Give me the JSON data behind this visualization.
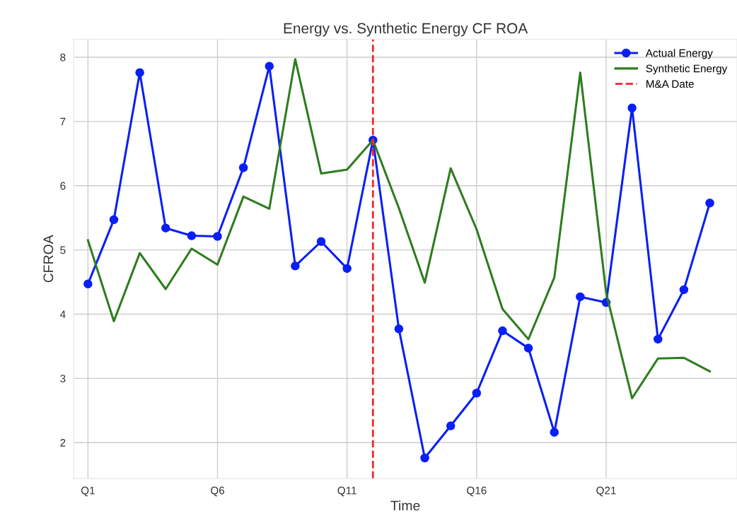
{
  "chart_data": {
    "type": "line",
    "title": "Energy vs. Synthetic Energy CF ROA",
    "xlabel": "Time",
    "ylabel": "CFROA",
    "categories": [
      "Q1",
      null,
      null,
      null,
      null,
      "Q6",
      null,
      null,
      null,
      null,
      "Q11",
      null,
      null,
      null,
      null,
      "Q16",
      null,
      null,
      null,
      null,
      "Q21",
      null,
      null,
      null,
      null
    ],
    "ylim": [
      1.44,
      8.28
    ],
    "yticks": [
      2,
      3,
      4,
      5,
      6,
      7,
      8
    ],
    "series": [
      {
        "name": "Actual Energy",
        "color": "#0a1ff5",
        "marker": "circle",
        "values": [
          4.47,
          5.47,
          7.76,
          5.34,
          5.22,
          5.21,
          6.28,
          7.86,
          4.75,
          5.13,
          4.71,
          6.71,
          3.77,
          1.76,
          2.26,
          2.77,
          3.74,
          3.47,
          2.16,
          4.27,
          4.18,
          7.21,
          3.61,
          4.38,
          5.73
        ]
      },
      {
        "name": "Synthetic Energy",
        "color": "#2e7d1f",
        "marker": "none",
        "values": [
          5.15,
          3.89,
          4.95,
          4.39,
          5.02,
          4.77,
          5.83,
          5.64,
          7.97,
          6.19,
          6.25,
          6.71,
          5.65,
          4.49,
          6.27,
          5.32,
          4.08,
          3.61,
          4.57,
          7.76,
          4.33,
          2.69,
          3.31,
          3.32,
          3.11
        ]
      }
    ],
    "ref_lines": [
      {
        "axis": "x",
        "label": "M&A Date",
        "color": "#f0282d",
        "line_style": "dashed"
      }
    ],
    "grid": true,
    "legend": "top right",
    "line_style": "solid"
  }
}
